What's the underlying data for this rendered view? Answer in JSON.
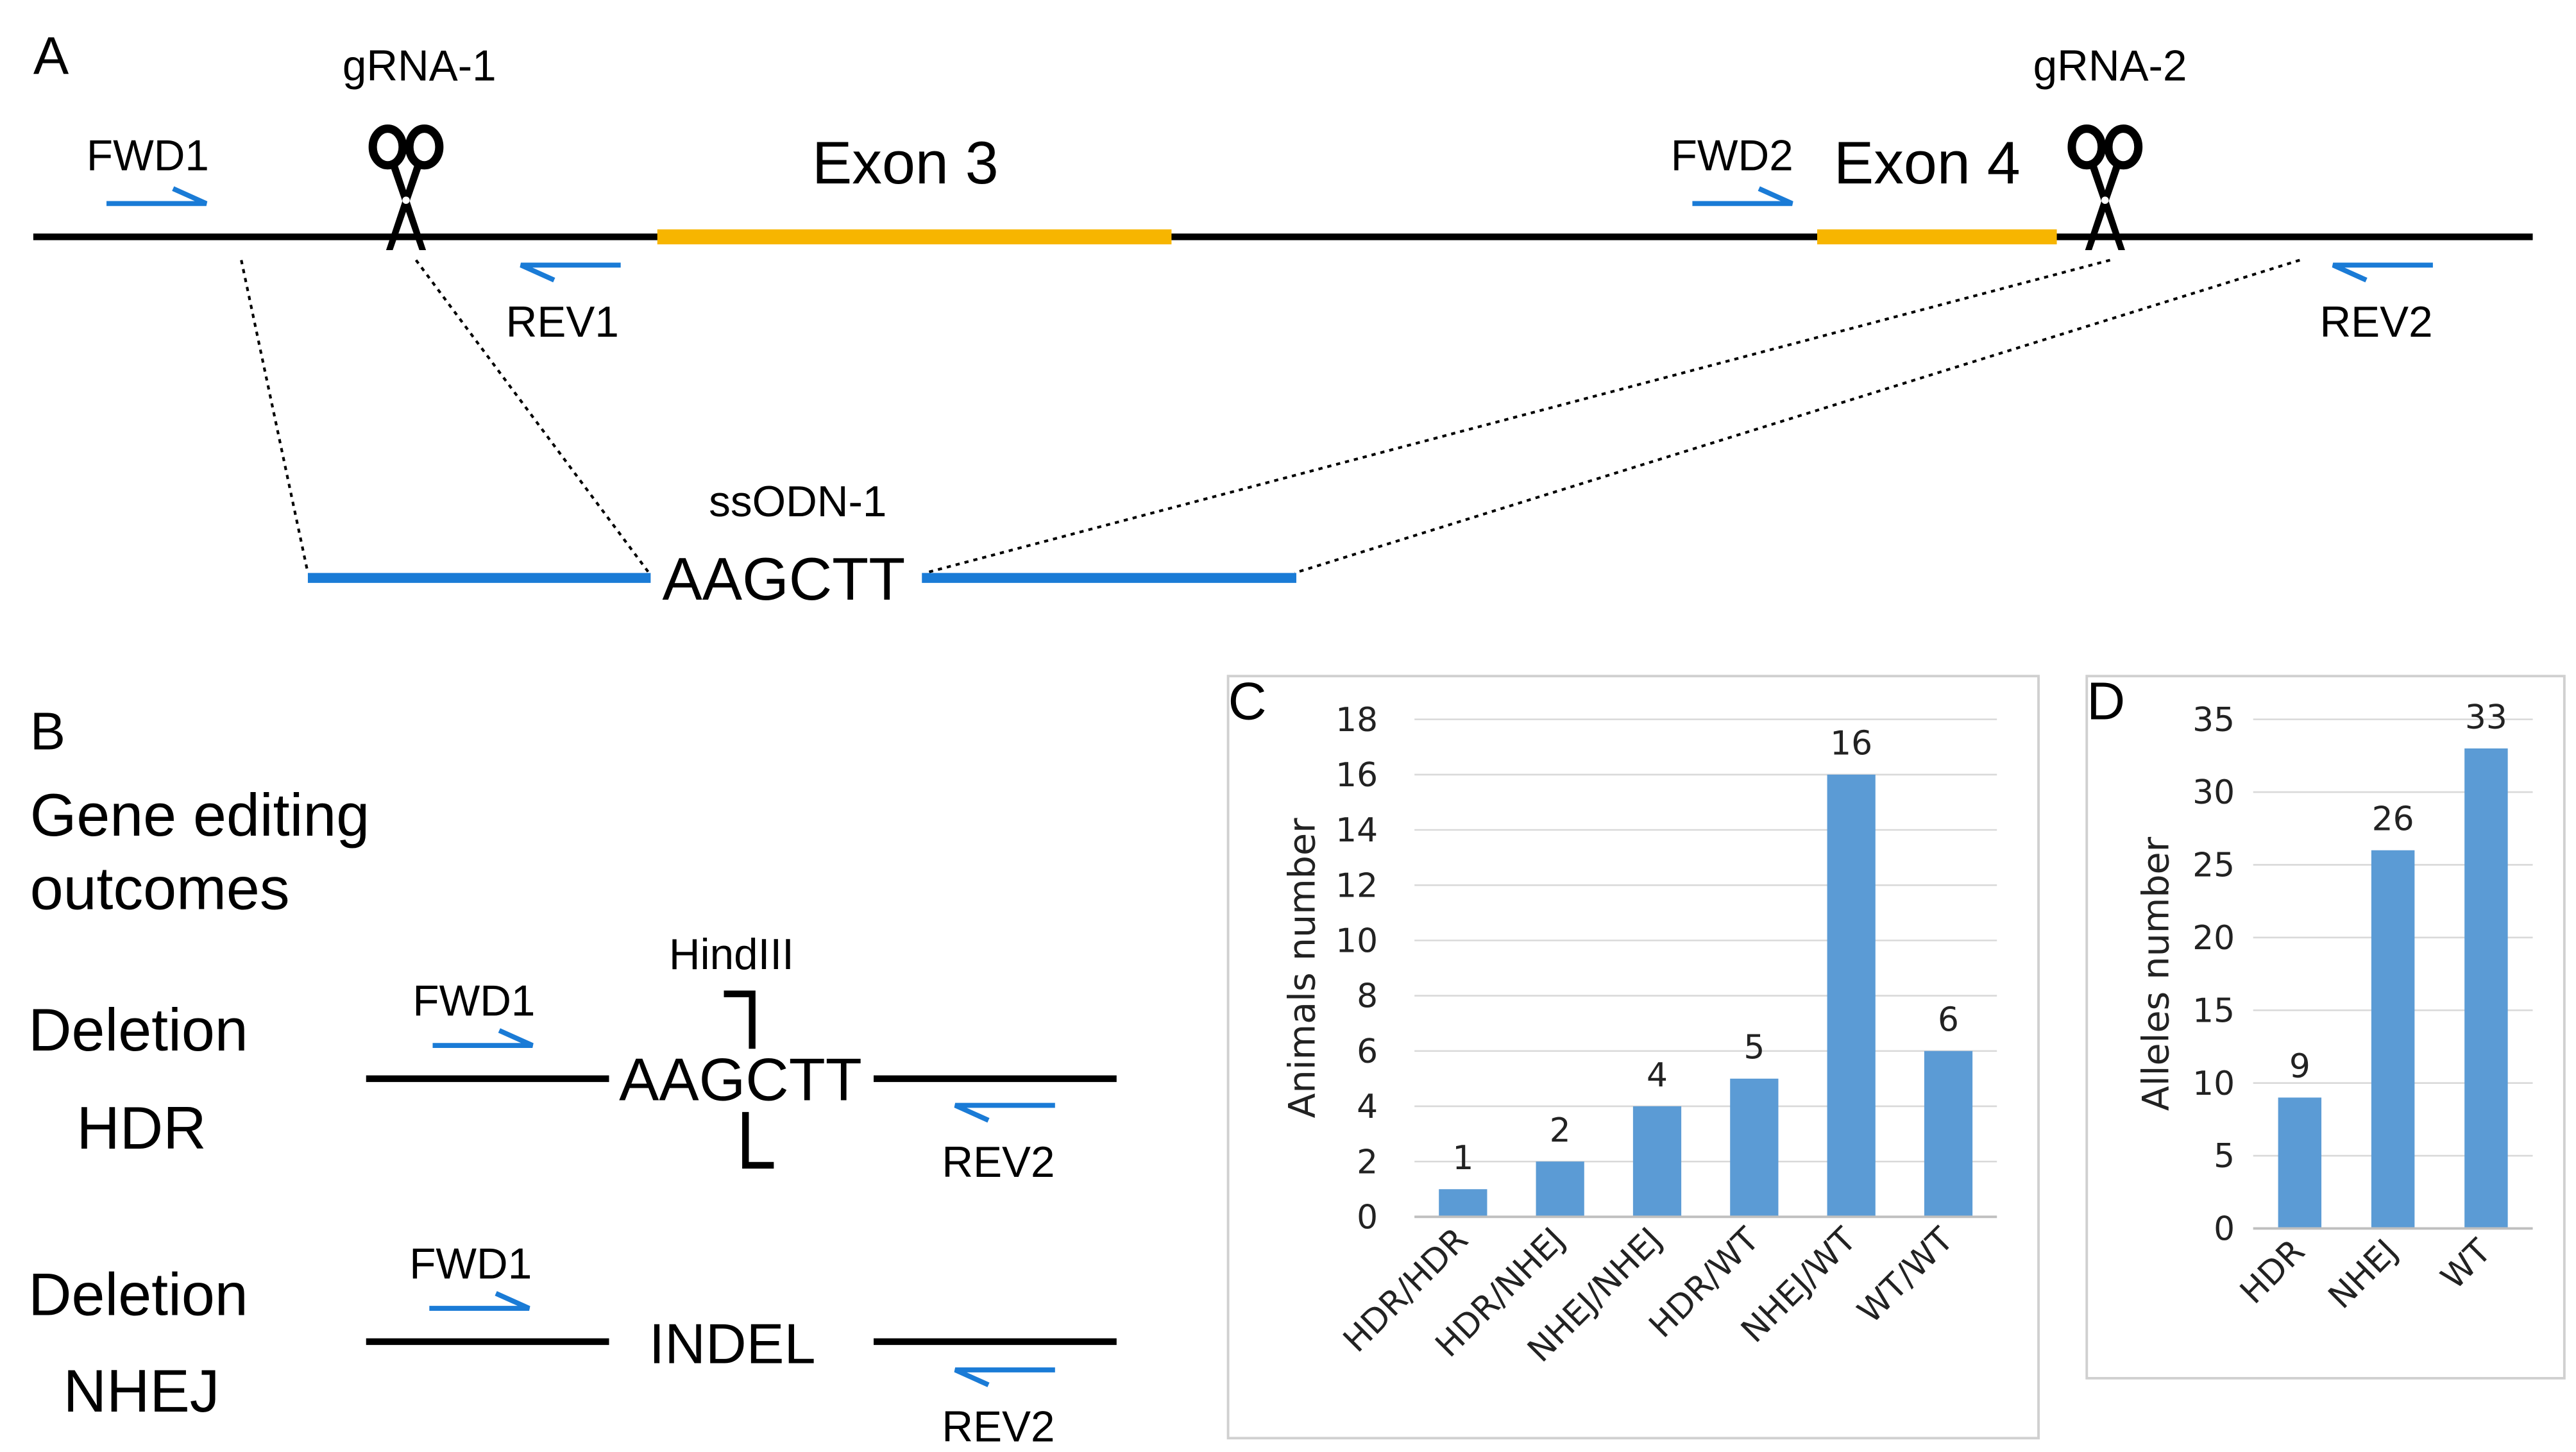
{
  "panel_a": {
    "label": "A",
    "gRNA1": "gRNA-1",
    "gRNA2": "gRNA-2",
    "exon3": "Exon 3",
    "exon4": "Exon 4",
    "fwd1": "FWD1",
    "fwd2": "FWD2",
    "rev1": "REV1",
    "rev2": "REV2",
    "ssodn": "ssODN-1",
    "site": "AAGCTT"
  },
  "panel_b": {
    "label": "B",
    "title_line1": "Gene editing",
    "title_line2": "outcomes",
    "hdr_line1": "Deletion",
    "hdr_line2": "HDR",
    "nhej_line1": "Deletion",
    "nhej_line2": "NHEJ",
    "enzyme": "HindIII",
    "site": "AAGCTT",
    "indel": "INDEL",
    "fwd1": "FWD1",
    "rev2": "REV2"
  },
  "colors": {
    "primer": "#1a7bd6",
    "exon": "#f7b500",
    "bar": "#5b9bd5",
    "line": "#000000"
  },
  "chart_data": [
    {
      "panel": "C",
      "type": "bar",
      "categories": [
        "HDR/HDR",
        "HDR/NHEJ",
        "NHEJ/NHEJ",
        "HDR/WT",
        "NHEJ/WT",
        "WT/WT"
      ],
      "values": [
        1,
        2,
        4,
        5,
        16,
        6
      ],
      "ylabel": "Animals number",
      "ylim": [
        0,
        18
      ],
      "yticks": [
        0,
        2,
        4,
        6,
        8,
        10,
        12,
        14,
        16,
        18
      ]
    },
    {
      "panel": "D",
      "type": "bar",
      "categories": [
        "HDR",
        "NHEJ",
        "WT"
      ],
      "values": [
        9,
        26,
        33
      ],
      "ylabel": "Alleles number",
      "ylim": [
        0,
        35
      ],
      "yticks": [
        0,
        5,
        10,
        15,
        20,
        25,
        30,
        35
      ]
    }
  ]
}
